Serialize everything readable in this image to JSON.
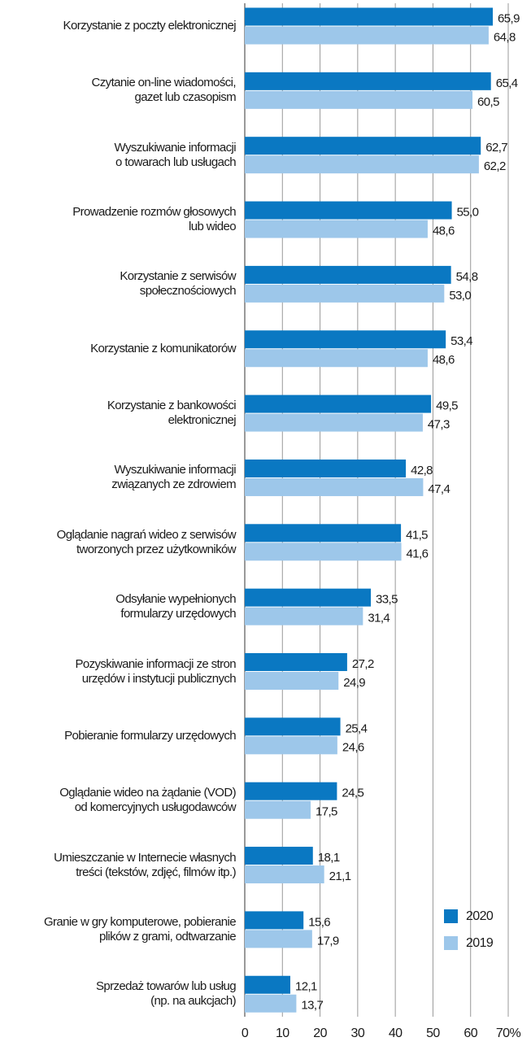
{
  "chart_data": {
    "type": "barh",
    "categories": [
      "Korzystanie z poczty elektronicznej",
      "Czytanie on-line wiadomości,\ngazet lub czasopism",
      "Wyszukiwanie informacji\no towarach lub usługach",
      "Prowadzenie rozmów głosowych\nlub wideo",
      "Korzystanie z serwisów\nspołecznościowych",
      "Korzystanie z komunikatorów",
      "Korzystanie z bankowości\nelektronicznej",
      "Wyszukiwanie informacji\nzwiązanych ze zdrowiem",
      "Oglądanie nagrań wideo z serwisów\ntworzonych przez użytkowników",
      "Odsyłanie wypełnionych\nformularzy urzędowych",
      "Pozyskiwanie informacji ze stron\nurzędów i instytucji publicznych",
      "Pobieranie formularzy urzędowych",
      "Oglądanie wideo na żądanie (VOD)\nod komercyjnych usługodawców",
      "Umieszczanie w Internecie własnych\ntreści (tekstów, zdjęć, filmów itp.)",
      "Granie w gry komputerowe, pobieranie\nplików z grami, odtwarzanie",
      "Sprzedaż towarów lub usług\n(np. na aukcjach)"
    ],
    "series": [
      {
        "name": "2020",
        "color": "#0a78c2",
        "values": [
          65.9,
          65.4,
          62.7,
          55.0,
          54.8,
          53.4,
          49.5,
          42.8,
          41.5,
          33.5,
          27.2,
          25.4,
          24.5,
          18.1,
          15.6,
          12.1
        ],
        "value_labels": [
          "65,9",
          "65,4",
          "62,7",
          "55,0",
          "54,8",
          "53,4",
          "49,5",
          "42,8",
          "41,5",
          "33,5",
          "27,2",
          "25,4",
          "24,5",
          "18,1",
          "15,6",
          "12,1"
        ]
      },
      {
        "name": "2019",
        "color": "#9dc7ea",
        "values": [
          64.8,
          60.5,
          62.2,
          48.6,
          53.0,
          48.6,
          47.3,
          47.4,
          41.6,
          31.4,
          24.9,
          24.6,
          17.5,
          21.1,
          17.9,
          13.7
        ],
        "value_labels": [
          "64,8",
          "60,5",
          "62,2",
          "48,6",
          "53,0",
          "48,6",
          "47,3",
          "47,4",
          "41,6",
          "31,4",
          "24,9",
          "24,6",
          "17,5",
          "21,1",
          "17,9",
          "13,7"
        ]
      }
    ],
    "xlim": [
      0,
      70
    ],
    "xticks": [
      0,
      10,
      20,
      30,
      40,
      50,
      60,
      {
        "value": 70,
        "label": "70%"
      }
    ],
    "grid": true,
    "legend": "lower right"
  }
}
